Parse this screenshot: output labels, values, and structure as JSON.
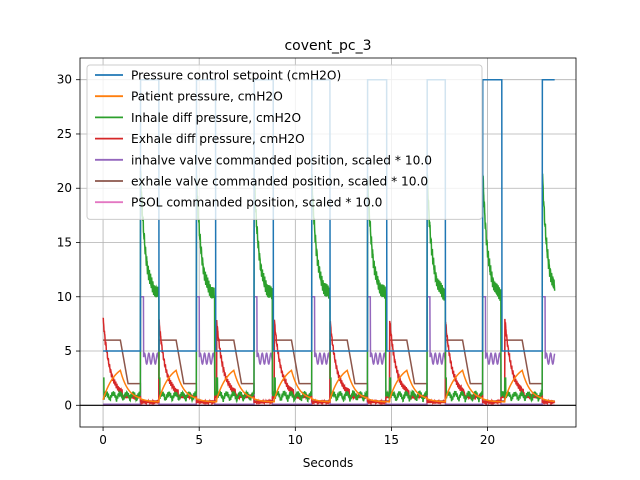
{
  "chart_data": {
    "type": "line",
    "title": "covent_pc_3",
    "xlabel": "Seconds",
    "ylabel": "",
    "xlim": [
      -1.2,
      24.6
    ],
    "ylim": [
      -2,
      32
    ],
    "grid": true,
    "legend_position": "top-left",
    "xticks": [
      0,
      5,
      10,
      15,
      20
    ],
    "yticks": [
      0,
      5,
      10,
      15,
      20,
      25,
      30
    ],
    "xtick_labels": [
      "0",
      "5",
      "10",
      "15",
      "20"
    ],
    "ytick_labels": [
      "0",
      "5",
      "10",
      "15",
      "20",
      "25",
      "30"
    ],
    "hline_y": 0,
    "breath_starts": [
      0,
      2.9,
      5.9,
      8.9,
      11.8,
      14.9,
      17.8,
      20.9
    ],
    "breath_period": 2.95,
    "inhale_duration": 0.95,
    "last_breath_cutoff": 23.5,
    "series": [
      {
        "name": "Pressure control setpoint (cmH2O)",
        "color": "#1f77b4",
        "peak": 30,
        "baseline": 5
      },
      {
        "name": "Patient pressure, cmH2O",
        "color": "#ff7f0e",
        "peak": 3.8,
        "baseline": 0.3
      },
      {
        "name": "Inhale diff pressure, cmH2O",
        "color": "#2ca02c",
        "peak": 21.5,
        "plateau": 10,
        "baseline": 0.5
      },
      {
        "name": "Exhale diff pressure, cmH2O",
        "color": "#d62728",
        "peak": 8,
        "baseline": 0.8
      },
      {
        "name": "inhalve valve commanded position, scaled * 10.0",
        "color": "#9467bd",
        "high": 10,
        "osc_mean": 4.3,
        "baseline": 0.1
      },
      {
        "name": "exhale valve commanded position, scaled * 10.0",
        "color": "#8c564b",
        "open": 6,
        "closed": 0.4
      },
      {
        "name": "PSOL commanded position, scaled * 10.0",
        "color": "#e377c2",
        "baseline": 0
      }
    ]
  }
}
